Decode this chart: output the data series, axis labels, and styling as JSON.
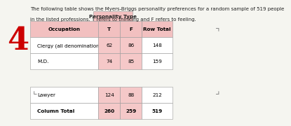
{
  "number": "4",
  "desc1": "The following table shows the Myers-Briggs personality preferences for a random sample of 519 people",
  "desc2": "in the listed professions. T refers to thinking and F refers to feeling.",
  "merged_header": "Personality Type",
  "col_headers": [
    "Occupation",
    "T",
    "F",
    "Row Total"
  ],
  "top_rows": [
    [
      "Clergy (all denominations)",
      "62",
      "86",
      "148"
    ],
    [
      "M.D.",
      "74",
      "85",
      "159"
    ]
  ],
  "bottom_rows": [
    [
      "Lawyer",
      "124",
      "88",
      "212"
    ],
    [
      "Column Total",
      "260",
      "259",
      "519"
    ]
  ],
  "header_pink": "#f2c0c0",
  "cell_pink": "#f5c8c8",
  "cell_white": "#ffffff",
  "edge_color": "#999999",
  "bg_color": "#f5f5f0",
  "text_color": "#222222",
  "number_color": "#cc0000",
  "number_fontsize": 32,
  "desc_fontsize": 5.0,
  "table_fontsize": 5.2
}
